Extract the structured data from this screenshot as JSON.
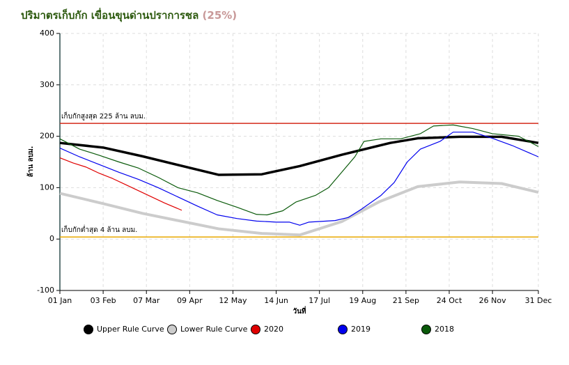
{
  "chart_data": {
    "type": "line",
    "title": "ปริมาตรเก็บกัก เขื่อนขุนด่านปราการชล",
    "current_percent_label": "(25%)",
    "y_label": "ล้าน ลบม.",
    "x_label": "วันที่",
    "xlim": [
      0,
      365
    ],
    "xticks": [
      {
        "value": 0,
        "label": "01 Jan"
      },
      {
        "value": 33,
        "label": "03 Feb"
      },
      {
        "value": 66,
        "label": "07 Mar"
      },
      {
        "value": 99,
        "label": "09 Apr"
      },
      {
        "value": 132,
        "label": "12 May"
      },
      {
        "value": 165,
        "label": "14 Jun"
      },
      {
        "value": 198,
        "label": "17 Jul"
      },
      {
        "value": 231,
        "label": "19 Aug"
      },
      {
        "value": 264,
        "label": "21 Sep"
      },
      {
        "value": 297,
        "label": "24 Oct"
      },
      {
        "value": 330,
        "label": "26 Nov"
      },
      {
        "value": 365,
        "label": "31 Dec"
      }
    ],
    "ylim": [
      -100,
      400
    ],
    "yticks": [
      -100,
      0,
      100,
      200,
      300,
      400
    ],
    "grid": true,
    "reference_lines": [
      {
        "value": 225,
        "color": "#d42a1a",
        "label": "เก็บกักสูงสุด 225 ล้าน ลบม."
      },
      {
        "value": 4,
        "color": "#e8a800",
        "label": "เก็บกักต่ำสุด 4 ล้าน ลบม."
      }
    ],
    "series": [
      {
        "name": "Upper Rule Curve",
        "color": "#000000",
        "width": 3.5,
        "x": [
          0,
          33,
          63,
          121,
          154,
          183,
          215,
          252,
          273,
          305,
          337,
          365
        ],
        "values": [
          187,
          178,
          161,
          125,
          126,
          142,
          164,
          187,
          196,
          199,
          199,
          187
        ]
      },
      {
        "name": "Lower Rule Curve",
        "color": "#cccccc",
        "width": 4,
        "x": [
          0,
          33,
          63,
          121,
          154,
          183,
          215,
          244,
          273,
          305,
          337,
          365
        ],
        "values": [
          89,
          69,
          50,
          20,
          11,
          8,
          34,
          73,
          102,
          111,
          108,
          91
        ]
      },
      {
        "name": "2020",
        "color": "#e00000",
        "width": 1.2,
        "x": [
          0,
          10,
          20,
          30,
          40,
          50,
          60,
          70,
          80,
          93
        ],
        "values": [
          158,
          148,
          140,
          128,
          118,
          106,
          94,
          82,
          70,
          56
        ]
      },
      {
        "name": "2019",
        "color": "#0000ee",
        "width": 1.2,
        "x": [
          0,
          15,
          30,
          45,
          60,
          75,
          90,
          105,
          120,
          135,
          150,
          165,
          175,
          183,
          190,
          210,
          220,
          230,
          245,
          255,
          265,
          275,
          290,
          300,
          315,
          330,
          345,
          365
        ],
        "values": [
          177,
          160,
          145,
          130,
          116,
          100,
          82,
          64,
          47,
          40,
          35,
          33,
          33,
          27,
          33,
          36,
          42,
          58,
          85,
          110,
          150,
          175,
          190,
          208,
          208,
          196,
          182,
          160
        ]
      },
      {
        "name": "2018",
        "color": "#0a5a0a",
        "width": 1.2,
        "x": [
          0,
          15,
          30,
          45,
          60,
          75,
          90,
          105,
          120,
          135,
          150,
          158,
          170,
          180,
          195,
          205,
          215,
          225,
          232,
          245,
          260,
          275,
          285,
          300,
          315,
          330,
          350,
          365
        ],
        "values": [
          195,
          175,
          163,
          150,
          138,
          120,
          100,
          90,
          75,
          62,
          48,
          47,
          55,
          72,
          85,
          100,
          130,
          160,
          190,
          195,
          195,
          205,
          220,
          222,
          215,
          205,
          200,
          180
        ]
      }
    ]
  }
}
